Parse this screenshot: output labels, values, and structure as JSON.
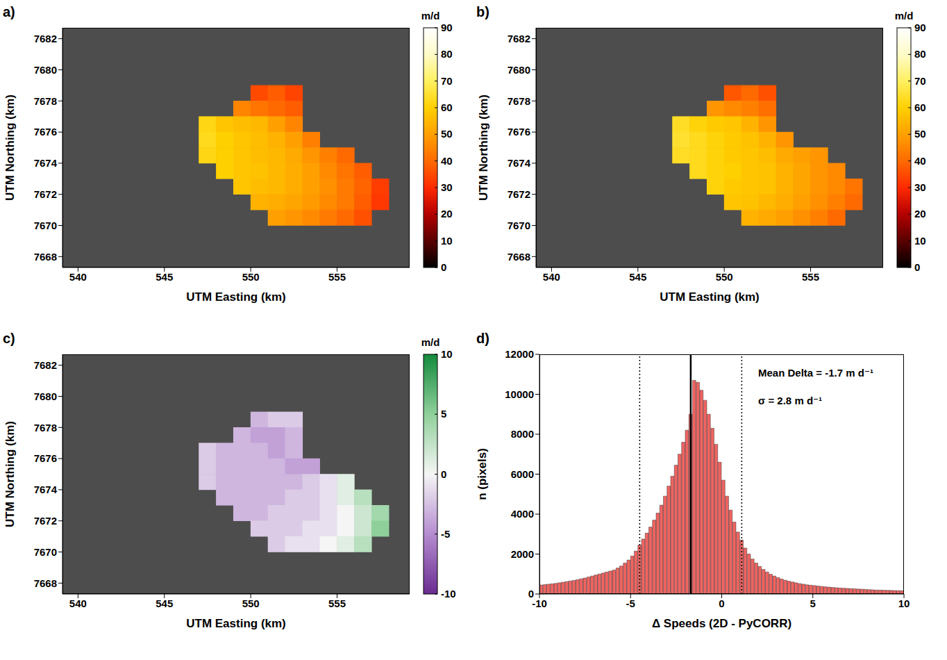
{
  "chart_data": [
    {
      "type": "heatmap",
      "label": "a)",
      "xlabel": "UTM Easting (km)",
      "ylabel": "UTM Northing (km)",
      "xlim": [
        539.1,
        559.2
      ],
      "xticks": [
        540,
        545,
        550,
        555
      ],
      "ylim": [
        7667.3,
        7682.7
      ],
      "yticks": [
        7668,
        7670,
        7672,
        7674,
        7676,
        7678,
        7680,
        7682
      ],
      "colorbar": {
        "label": "m/d",
        "range": [
          0,
          90
        ],
        "ticks": [
          0,
          10,
          20,
          30,
          40,
          50,
          60,
          70,
          80,
          90
        ],
        "colors": [
          "#000000",
          "#5a0000",
          "#b40000",
          "#ff2a00",
          "#ff6a00",
          "#ffa000",
          "#ffd000",
          "#fff060",
          "#fffbc8",
          "#ffffff"
        ]
      },
      "cells": [
        [
          550.5,
          7678.5,
          35
        ],
        [
          551.5,
          7678.5,
          38
        ],
        [
          552.5,
          7678.5,
          34
        ],
        [
          549.5,
          7677.5,
          45
        ],
        [
          550.5,
          7677.5,
          42
        ],
        [
          551.5,
          7677.5,
          40
        ],
        [
          552.5,
          7677.5,
          38
        ],
        [
          547.5,
          7676.5,
          62
        ],
        [
          548.5,
          7676.5,
          58
        ],
        [
          549.5,
          7676.5,
          56
        ],
        [
          550.5,
          7676.5,
          55
        ],
        [
          551.5,
          7676.5,
          50
        ],
        [
          552.5,
          7676.5,
          45
        ],
        [
          547.5,
          7675.5,
          63
        ],
        [
          548.5,
          7675.5,
          60
        ],
        [
          549.5,
          7675.5,
          58
        ],
        [
          550.5,
          7675.5,
          56
        ],
        [
          551.5,
          7675.5,
          54
        ],
        [
          552.5,
          7675.5,
          50
        ],
        [
          553.5,
          7675.5,
          44
        ],
        [
          547.5,
          7674.5,
          62
        ],
        [
          548.5,
          7674.5,
          60
        ],
        [
          549.5,
          7674.5,
          58
        ],
        [
          550.5,
          7674.5,
          56
        ],
        [
          551.5,
          7674.5,
          55
        ],
        [
          552.5,
          7674.5,
          52
        ],
        [
          553.5,
          7674.5,
          48
        ],
        [
          554.5,
          7674.5,
          44
        ],
        [
          555.5,
          7674.5,
          40
        ],
        [
          548.5,
          7673.5,
          60
        ],
        [
          549.5,
          7673.5,
          58
        ],
        [
          550.5,
          7673.5,
          57
        ],
        [
          551.5,
          7673.5,
          55
        ],
        [
          552.5,
          7673.5,
          53
        ],
        [
          553.5,
          7673.5,
          50
        ],
        [
          554.5,
          7673.5,
          46
        ],
        [
          555.5,
          7673.5,
          42
        ],
        [
          556.5,
          7673.5,
          38
        ],
        [
          549.5,
          7672.5,
          58
        ],
        [
          550.5,
          7672.5,
          56
        ],
        [
          551.5,
          7672.5,
          55
        ],
        [
          552.5,
          7672.5,
          53
        ],
        [
          553.5,
          7672.5,
          50
        ],
        [
          554.5,
          7672.5,
          47
        ],
        [
          555.5,
          7672.5,
          43
        ],
        [
          556.5,
          7672.5,
          39
        ],
        [
          557.5,
          7672.5,
          33
        ],
        [
          550.5,
          7671.5,
          54
        ],
        [
          551.5,
          7671.5,
          53
        ],
        [
          552.5,
          7671.5,
          51
        ],
        [
          553.5,
          7671.5,
          49
        ],
        [
          554.5,
          7671.5,
          46
        ],
        [
          555.5,
          7671.5,
          43
        ],
        [
          556.5,
          7671.5,
          38
        ],
        [
          557.5,
          7671.5,
          32
        ],
        [
          551.5,
          7670.5,
          50
        ],
        [
          552.5,
          7670.5,
          48
        ],
        [
          553.5,
          7670.5,
          46
        ],
        [
          554.5,
          7670.5,
          43
        ],
        [
          555.5,
          7670.5,
          40
        ],
        [
          556.5,
          7670.5,
          36
        ]
      ]
    },
    {
      "type": "heatmap",
      "label": "b)",
      "xlabel": "UTM Easting (km)",
      "ylabel": "UTM Northing (km)",
      "xlim": [
        539.1,
        559.2
      ],
      "xticks": [
        540,
        545,
        550,
        555
      ],
      "ylim": [
        7667.3,
        7682.7
      ],
      "yticks": [
        7668,
        7670,
        7672,
        7674,
        7676,
        7678,
        7680,
        7682
      ],
      "colorbar": {
        "label": "m/d",
        "range": [
          0,
          90
        ],
        "ticks": [
          0,
          10,
          20,
          30,
          40,
          50,
          60,
          70,
          80,
          90
        ],
        "colors": [
          "#000000",
          "#5a0000",
          "#b40000",
          "#ff2a00",
          "#ff6a00",
          "#ffa000",
          "#ffd000",
          "#fff060",
          "#fffbc8",
          "#ffffff"
        ]
      },
      "cells": [
        [
          550.5,
          7678.5,
          37
        ],
        [
          551.5,
          7678.5,
          40
        ],
        [
          552.5,
          7678.5,
          36
        ],
        [
          549.5,
          7677.5,
          48
        ],
        [
          550.5,
          7677.5,
          46
        ],
        [
          551.5,
          7677.5,
          44
        ],
        [
          552.5,
          7677.5,
          41
        ],
        [
          547.5,
          7676.5,
          64
        ],
        [
          548.5,
          7676.5,
          61
        ],
        [
          549.5,
          7676.5,
          59
        ],
        [
          550.5,
          7676.5,
          58
        ],
        [
          551.5,
          7676.5,
          54
        ],
        [
          552.5,
          7676.5,
          48
        ],
        [
          547.5,
          7675.5,
          65
        ],
        [
          548.5,
          7675.5,
          63
        ],
        [
          549.5,
          7675.5,
          61
        ],
        [
          550.5,
          7675.5,
          59
        ],
        [
          551.5,
          7675.5,
          57
        ],
        [
          552.5,
          7675.5,
          54
        ],
        [
          553.5,
          7675.5,
          48
        ],
        [
          547.5,
          7674.5,
          64
        ],
        [
          548.5,
          7674.5,
          63
        ],
        [
          549.5,
          7674.5,
          61
        ],
        [
          550.5,
          7674.5,
          59
        ],
        [
          551.5,
          7674.5,
          58
        ],
        [
          552.5,
          7674.5,
          56
        ],
        [
          553.5,
          7674.5,
          52
        ],
        [
          554.5,
          7674.5,
          50
        ],
        [
          555.5,
          7674.5,
          48
        ],
        [
          548.5,
          7673.5,
          63
        ],
        [
          549.5,
          7673.5,
          61
        ],
        [
          550.5,
          7673.5,
          60
        ],
        [
          551.5,
          7673.5,
          58
        ],
        [
          552.5,
          7673.5,
          57
        ],
        [
          553.5,
          7673.5,
          54
        ],
        [
          554.5,
          7673.5,
          51
        ],
        [
          555.5,
          7673.5,
          48
        ],
        [
          556.5,
          7673.5,
          46
        ],
        [
          549.5,
          7672.5,
          61
        ],
        [
          550.5,
          7672.5,
          59
        ],
        [
          551.5,
          7672.5,
          58
        ],
        [
          552.5,
          7672.5,
          57
        ],
        [
          553.5,
          7672.5,
          54
        ],
        [
          554.5,
          7672.5,
          51
        ],
        [
          555.5,
          7672.5,
          48
        ],
        [
          556.5,
          7672.5,
          46
        ],
        [
          557.5,
          7672.5,
          42
        ],
        [
          550.5,
          7671.5,
          58
        ],
        [
          551.5,
          7671.5,
          57
        ],
        [
          552.5,
          7671.5,
          55
        ],
        [
          553.5,
          7671.5,
          53
        ],
        [
          554.5,
          7671.5,
          50
        ],
        [
          555.5,
          7671.5,
          47
        ],
        [
          556.5,
          7671.5,
          44
        ],
        [
          557.5,
          7671.5,
          40
        ],
        [
          551.5,
          7670.5,
          54
        ],
        [
          552.5,
          7670.5,
          52
        ],
        [
          553.5,
          7670.5,
          50
        ],
        [
          554.5,
          7670.5,
          47
        ],
        [
          555.5,
          7670.5,
          44
        ],
        [
          556.5,
          7670.5,
          40
        ]
      ]
    },
    {
      "type": "heatmap",
      "label": "c)",
      "xlabel": "UTM Easting (km)",
      "ylabel": "UTM Northing (km)",
      "xlim": [
        539.1,
        559.2
      ],
      "xticks": [
        540,
        545,
        550,
        555
      ],
      "ylim": [
        7667.3,
        7682.7
      ],
      "yticks": [
        7668,
        7670,
        7672,
        7674,
        7676,
        7678,
        7680,
        7682
      ],
      "colorbar": {
        "label": "m/d",
        "range": [
          -10,
          10
        ],
        "ticks": [
          -10,
          -5,
          0,
          5,
          10
        ],
        "colors": [
          "#6a2c91",
          "#b58cd0",
          "#f5f5f5",
          "#8fd09a",
          "#138a3c"
        ]
      },
      "cells": [
        [
          550.5,
          7678.5,
          -3
        ],
        [
          551.5,
          7678.5,
          -2
        ],
        [
          552.5,
          7678.5,
          -2
        ],
        [
          549.5,
          7677.5,
          -3
        ],
        [
          550.5,
          7677.5,
          -4
        ],
        [
          551.5,
          7677.5,
          -4
        ],
        [
          552.5,
          7677.5,
          -3
        ],
        [
          547.5,
          7676.5,
          -2
        ],
        [
          548.5,
          7676.5,
          -3
        ],
        [
          549.5,
          7676.5,
          -3
        ],
        [
          550.5,
          7676.5,
          -3
        ],
        [
          551.5,
          7676.5,
          -4
        ],
        [
          552.5,
          7676.5,
          -3
        ],
        [
          547.5,
          7675.5,
          -2
        ],
        [
          548.5,
          7675.5,
          -3
        ],
        [
          549.5,
          7675.5,
          -3
        ],
        [
          550.5,
          7675.5,
          -3
        ],
        [
          551.5,
          7675.5,
          -3
        ],
        [
          552.5,
          7675.5,
          -4
        ],
        [
          553.5,
          7675.5,
          -4
        ],
        [
          547.5,
          7674.5,
          -2
        ],
        [
          548.5,
          7674.5,
          -3
        ],
        [
          549.5,
          7674.5,
          -3
        ],
        [
          550.5,
          7674.5,
          -3
        ],
        [
          551.5,
          7674.5,
          -3
        ],
        [
          552.5,
          7674.5,
          -3
        ],
        [
          553.5,
          7674.5,
          -2
        ],
        [
          554.5,
          7674.5,
          -1
        ],
        [
          555.5,
          7674.5,
          1
        ],
        [
          548.5,
          7673.5,
          -3
        ],
        [
          549.5,
          7673.5,
          -3
        ],
        [
          550.5,
          7673.5,
          -3
        ],
        [
          551.5,
          7673.5,
          -3
        ],
        [
          552.5,
          7673.5,
          -2
        ],
        [
          553.5,
          7673.5,
          -2
        ],
        [
          554.5,
          7673.5,
          -1
        ],
        [
          555.5,
          7673.5,
          1
        ],
        [
          556.5,
          7673.5,
          3
        ],
        [
          549.5,
          7672.5,
          -3
        ],
        [
          550.5,
          7672.5,
          -3
        ],
        [
          551.5,
          7672.5,
          -2
        ],
        [
          552.5,
          7672.5,
          -2
        ],
        [
          553.5,
          7672.5,
          -2
        ],
        [
          554.5,
          7672.5,
          -1
        ],
        [
          555.5,
          7672.5,
          0
        ],
        [
          556.5,
          7672.5,
          2
        ],
        [
          557.5,
          7672.5,
          4
        ],
        [
          550.5,
          7671.5,
          -2
        ],
        [
          551.5,
          7671.5,
          -2
        ],
        [
          552.5,
          7671.5,
          -2
        ],
        [
          553.5,
          7671.5,
          -1
        ],
        [
          554.5,
          7671.5,
          -1
        ],
        [
          555.5,
          7671.5,
          0
        ],
        [
          556.5,
          7671.5,
          2
        ],
        [
          557.5,
          7671.5,
          5
        ],
        [
          551.5,
          7670.5,
          -2
        ],
        [
          552.5,
          7670.5,
          -1
        ],
        [
          553.5,
          7670.5,
          -1
        ],
        [
          554.5,
          7670.5,
          0
        ],
        [
          555.5,
          7670.5,
          1
        ],
        [
          556.5,
          7670.5,
          3
        ]
      ]
    },
    {
      "type": "histogram",
      "label": "d)",
      "xlabel": "Δ Speeds (2D - PyCORR)",
      "ylabel": "n (pixels)",
      "color": "#ef6461",
      "xlim": [
        -10,
        10
      ],
      "xticks": [
        -10,
        -5,
        0,
        5,
        10
      ],
      "ylim": [
        0,
        12000
      ],
      "yticks": [
        0,
        2000,
        4000,
        6000,
        8000,
        10000,
        12000
      ],
      "annotations": [
        "Mean Delta = -1.7  m d⁻¹",
        "σ = 2.8  m d⁻¹"
      ],
      "vlines": [
        {
          "value": -1.7,
          "line_style": "solid"
        },
        {
          "value": -4.5,
          "line_style": "dotted"
        },
        {
          "value": 1.1,
          "line_style": "dotted"
        }
      ],
      "bins": [
        -10,
        -9.8,
        -9.6,
        -9.4,
        -9.2,
        -9,
        -8.8,
        -8.6,
        -8.4,
        -8.2,
        -8,
        -7.8,
        -7.6,
        -7.4,
        -7.2,
        -7,
        -6.8,
        -6.6,
        -6.4,
        -6.2,
        -6,
        -5.8,
        -5.6,
        -5.4,
        -5.2,
        -5,
        -4.8,
        -4.6,
        -4.4,
        -4.2,
        -4,
        -3.8,
        -3.6,
        -3.4,
        -3.2,
        -3,
        -2.8,
        -2.6,
        -2.4,
        -2.2,
        -2,
        -1.8,
        -1.6,
        -1.4,
        -1.2,
        -1,
        -0.8,
        -0.6,
        -0.4,
        -0.2,
        0,
        0.2,
        0.4,
        0.6,
        0.8,
        1,
        1.2,
        1.4,
        1.6,
        1.8,
        2,
        2.2,
        2.4,
        2.6,
        2.8,
        3,
        3.2,
        3.4,
        3.6,
        3.8,
        4,
        4.2,
        4.4,
        4.6,
        4.8,
        5,
        5.2,
        5.4,
        5.6,
        5.8,
        6,
        6.2,
        6.4,
        6.6,
        6.8,
        7,
        7.2,
        7.4,
        7.6,
        7.8,
        8,
        8.2,
        8.4,
        8.6,
        8.8,
        9,
        9.2,
        9.4,
        9.6,
        9.8,
        10
      ],
      "values": [
        450,
        470,
        490,
        510,
        530,
        560,
        590,
        620,
        650,
        680,
        720,
        760,
        800,
        850,
        900,
        950,
        1000,
        1050,
        1100,
        1150,
        1200,
        1300,
        1400,
        1550,
        1700,
        1900,
        2150,
        2450,
        2750,
        3050,
        3350,
        3700,
        4050,
        4450,
        4900,
        5400,
        5900,
        6450,
        7000,
        7600,
        8200,
        9000,
        10700,
        10600,
        10200,
        9700,
        9000,
        8300,
        7500,
        6600,
        5700,
        4900,
        4200,
        3600,
        3100,
        2700,
        2300,
        2000,
        1750,
        1550,
        1380,
        1230,
        1100,
        990,
        900,
        820,
        750,
        690,
        640,
        600,
        560,
        520,
        490,
        460,
        440,
        420,
        400,
        380,
        360,
        345,
        330,
        315,
        300,
        290,
        280,
        270,
        260,
        250,
        240,
        230,
        220,
        210,
        200,
        195,
        190,
        185,
        180,
        175,
        170,
        165
      ]
    }
  ]
}
